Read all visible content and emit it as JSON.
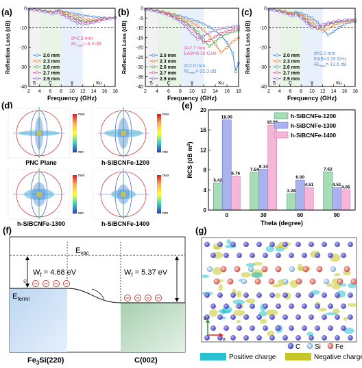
{
  "colors": {
    "t20": "#5b8fd6",
    "t23": "#f28a4a",
    "t26": "#53b45c",
    "t27": "#e8609c",
    "t29": "#9c7fd3",
    "rcs1200": "#a6dcb6",
    "rcs1300": "#aab3ee",
    "rcs1400": "#f6b6d8",
    "pos_charge": "#27c1d1",
    "neg_charge": "#c6c52a"
  },
  "panel_labels": {
    "a": "(a)",
    "b": "(b)",
    "c": "(c)",
    "d": "(d)",
    "e": "(e)",
    "f": "(f)",
    "g": "(g)"
  },
  "chart_data": [
    {
      "id": "a",
      "type": "line",
      "xlabel": "Frequency (GHz)",
      "ylabel": "Reflection Loss (dB)",
      "xlim": [
        2,
        18
      ],
      "ylim": [
        -40,
        0
      ],
      "xticks": [
        2,
        4,
        6,
        8,
        10,
        12,
        14,
        16,
        18
      ],
      "yticks": [
        0,
        -10,
        -20,
        -30,
        -40
      ],
      "bands": [
        "S",
        "C",
        "X",
        "Ku"
      ],
      "ref_line": -10,
      "annotation": [
        "d=2.9 mm",
        "RLmin=-8.3 dB"
      ],
      "x": [
        2,
        3,
        4,
        5,
        6,
        6.5,
        7,
        7.5,
        8,
        9,
        10,
        11,
        12,
        13,
        14,
        15,
        16,
        17,
        18
      ],
      "series": [
        {
          "name": "2.0 mm",
          "values": [
            -0.5,
            -0.7,
            -1.0,
            -1.3,
            -1.8,
            -2.2,
            -1.6,
            -1.2,
            -1.5,
            -2.0,
            -2.6,
            -3.1,
            -3.6,
            -4.0,
            -4.4,
            -4.7,
            -4.9,
            -5.0,
            -5.0
          ]
        },
        {
          "name": "2.3 mm",
          "values": [
            -0.6,
            -0.8,
            -1.1,
            -1.5,
            -2.0,
            -2.4,
            -1.8,
            -1.5,
            -1.9,
            -2.6,
            -3.4,
            -4.3,
            -5.2,
            -5.8,
            -6.0,
            -5.8,
            -5.4,
            -5.0,
            -4.7
          ]
        },
        {
          "name": "2.6 mm",
          "values": [
            -0.7,
            -0.9,
            -1.2,
            -1.7,
            -2.2,
            -2.6,
            -2.0,
            -1.8,
            -2.4,
            -3.4,
            -4.5,
            -5.6,
            -6.5,
            -6.8,
            -6.6,
            -6.0,
            -5.4,
            -5.0,
            -4.7
          ]
        },
        {
          "name": "2.7 mm",
          "values": [
            -0.7,
            -0.9,
            -1.3,
            -1.8,
            -2.3,
            -2.7,
            -2.1,
            -1.9,
            -2.6,
            -3.8,
            -5.0,
            -6.3,
            -7.2,
            -7.2,
            -6.8,
            -6.1,
            -5.5,
            -5.1,
            -4.8
          ]
        },
        {
          "name": "2.9 mm",
          "values": [
            -0.8,
            -1.0,
            -1.4,
            -1.9,
            -2.5,
            -2.9,
            -2.3,
            -2.2,
            -3.1,
            -4.6,
            -6.2,
            -7.6,
            -8.3,
            -8.0,
            -7.4,
            -6.6,
            -5.9,
            -5.4,
            -5.0
          ]
        }
      ]
    },
    {
      "id": "b",
      "type": "line",
      "xlabel": "Frequency (GHz)",
      "ylabel": "Reflection Loss (dB)",
      "xlim": [
        2,
        18
      ],
      "ylim": [
        -40,
        0
      ],
      "xticks": [
        2,
        4,
        6,
        8,
        10,
        12,
        14,
        16,
        18
      ],
      "yticks": [
        0,
        -5,
        -10,
        -15,
        -20,
        -25,
        -30,
        -35,
        -40
      ],
      "bands": [
        "S",
        "C",
        "X",
        "Ku"
      ],
      "ref_line": -10,
      "annotations": [
        [
          "d=2.7 mm",
          "EAB=8.16 GHz"
        ],
        [
          "d=2.0 mm",
          "RLmin=-32.3 dB"
        ]
      ],
      "x": [
        2,
        3,
        4,
        5,
        6,
        7,
        8,
        9,
        10,
        11,
        12,
        13,
        14,
        15,
        16,
        17,
        17.5,
        18
      ],
      "series": [
        {
          "name": "2.0 mm",
          "values": [
            -0.5,
            -0.8,
            -1.2,
            -1.8,
            -2.5,
            -3.2,
            -4.0,
            -4.9,
            -5.8,
            -6.8,
            -8.0,
            -9.6,
            -11.5,
            -14.0,
            -17.5,
            -23.0,
            -32.3,
            -28.0
          ]
        },
        {
          "name": "2.3 mm",
          "values": [
            -0.6,
            -0.9,
            -1.4,
            -2.0,
            -2.8,
            -3.7,
            -4.7,
            -5.9,
            -7.3,
            -9.0,
            -11.3,
            -14.2,
            -18.5,
            -22.5,
            -20.0,
            -17.0,
            -16.0,
            -15.2
          ]
        },
        {
          "name": "2.6 mm",
          "values": [
            -0.7,
            -1.0,
            -1.6,
            -2.3,
            -3.2,
            -4.3,
            -5.6,
            -7.2,
            -9.3,
            -12.2,
            -16.2,
            -19.5,
            -17.0,
            -14.5,
            -13.0,
            -12.0,
            -11.6,
            -11.2
          ]
        },
        {
          "name": "2.7 mm",
          "values": [
            -0.7,
            -1.1,
            -1.7,
            -2.4,
            -3.4,
            -4.6,
            -6.0,
            -7.9,
            -10.3,
            -13.8,
            -17.5,
            -16.5,
            -14.5,
            -12.8,
            -11.6,
            -10.9,
            -10.6,
            -10.4
          ]
        },
        {
          "name": "2.9 mm",
          "values": [
            -0.8,
            -1.2,
            -1.9,
            -2.7,
            -3.8,
            -5.2,
            -7.0,
            -9.5,
            -13.0,
            -15.8,
            -14.2,
            -12.5,
            -11.3,
            -10.5,
            -9.9,
            -9.5,
            -9.3,
            -9.2
          ]
        }
      ]
    },
    {
      "id": "c",
      "type": "line",
      "xlabel": "Frequency (GHz)",
      "ylabel": "Reflection Loss (dB)",
      "xlim": [
        2,
        18
      ],
      "ylim": [
        -40,
        0
      ],
      "xticks": [
        2,
        4,
        6,
        8,
        10,
        12,
        14,
        16,
        18
      ],
      "yticks": [
        0,
        -10,
        -20,
        -30,
        -40
      ],
      "bands": [
        "S",
        "C",
        "X",
        "Ku"
      ],
      "ref_line": -10,
      "annotation": [
        "d=2.0 mm",
        "EAB=3.28 GHz",
        "RLmin=-13.6 dB"
      ],
      "x": [
        2,
        3,
        4,
        5,
        6,
        6.5,
        7,
        8,
        9,
        10,
        11,
        12,
        13,
        14,
        15,
        16,
        17,
        18
      ],
      "series": [
        {
          "name": "2.0 mm",
          "values": [
            -0.5,
            -0.8,
            -1.2,
            -1.7,
            -2.3,
            -2.6,
            -2.0,
            -2.6,
            -3.6,
            -5.0,
            -7.2,
            -10.5,
            -13.6,
            -12.0,
            -9.8,
            -8.2,
            -7.3,
            -6.8
          ]
        },
        {
          "name": "2.3 mm",
          "values": [
            -0.6,
            -0.9,
            -1.4,
            -2.0,
            -2.7,
            -3.0,
            -2.4,
            -3.2,
            -4.6,
            -6.6,
            -9.6,
            -11.8,
            -10.2,
            -8.8,
            -7.8,
            -7.1,
            -6.6,
            -6.3
          ]
        },
        {
          "name": "2.6 mm",
          "values": [
            -0.7,
            -1.0,
            -1.6,
            -2.3,
            -3.1,
            -3.4,
            -2.8,
            -3.9,
            -5.8,
            -8.6,
            -10.6,
            -9.6,
            -8.4,
            -7.5,
            -6.9,
            -6.4,
            -6.1,
            -5.9
          ]
        },
        {
          "name": "2.7 mm",
          "values": [
            -0.7,
            -1.1,
            -1.7,
            -2.4,
            -3.3,
            -3.6,
            -3.0,
            -4.3,
            -6.4,
            -9.4,
            -10.0,
            -9.0,
            -8.0,
            -7.2,
            -6.6,
            -6.2,
            -5.9,
            -5.8
          ]
        },
        {
          "name": "2.9 mm",
          "values": [
            -0.8,
            -1.2,
            -1.9,
            -2.7,
            -3.7,
            -4.0,
            -3.4,
            -5.0,
            -7.6,
            -9.9,
            -9.2,
            -8.2,
            -7.4,
            -6.8,
            -6.3,
            -6.0,
            -5.8,
            -5.7
          ]
        }
      ]
    },
    {
      "id": "e",
      "type": "bar",
      "xlabel": "Theta (degree)",
      "ylabel": "RCS (dB m",
      "ylabel_sup": "2",
      "ylabel_tail": ")",
      "ylim": [
        0,
        20
      ],
      "yticks": [
        0,
        4,
        8,
        12,
        16,
        20
      ],
      "categories": [
        "0",
        "30",
        "60",
        "90"
      ],
      "series": [
        {
          "name": "h-SiBCNFe-1200",
          "values": [
            5.42,
            7.54,
            3.28,
            7.62
          ],
          "labels": [
            "5.42",
            "7.54",
            "3.28",
            "7.62"
          ]
        },
        {
          "name": "h-SiBCNFe-1300",
          "values": [
            18.0,
            8.14,
            6.0,
            4.51
          ],
          "labels": [
            "18.00",
            "8.14",
            "6.00",
            "4.51"
          ]
        },
        {
          "name": "h-SiBCNFe-1400",
          "values": [
            6.76,
            16.96,
            4.51,
            4.06
          ],
          "labels": [
            "6.76",
            "16.96",
            "4.51",
            "4.06"
          ]
        }
      ],
      "legend_position": "top-right"
    }
  ],
  "panel_d": {
    "captions": [
      "PNC Plane",
      "h-SiBCNFe-1200",
      "h-SiBCNFe-1300",
      "h-SiBCNFe-1400"
    ],
    "colorbar_max": "max",
    "colorbar_min": "min"
  },
  "panel_f": {
    "wf_left": "W",
    "wf_left_sub": "f",
    "wf_left_val": " = 4.68 eV",
    "wf_right": "W",
    "wf_right_sub": "f",
    "wf_right_val": " = 5.37 eV",
    "evac": "E",
    "evac_sub": "vac",
    "efermi": "E",
    "efermi_sub": "fermi",
    "electron": "e",
    "electron_sup": "-",
    "left_material": "Fe",
    "left_sub": "3",
    "left_tail": "Si(220)",
    "right_material": "C(002)"
  },
  "panel_g": {
    "atoms": [
      "C",
      "Si",
      "Fe"
    ],
    "legend_pos": "Positive charge",
    "legend_neg": "Negative charge",
    "axis_b": "b",
    "axis_a": "a"
  }
}
